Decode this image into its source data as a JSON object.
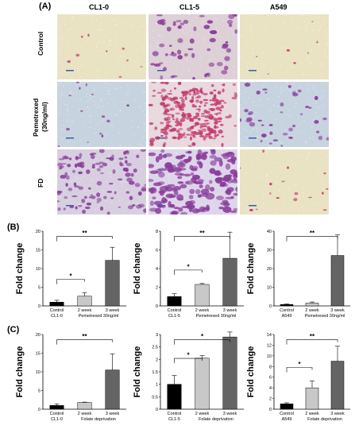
{
  "panel_A": {
    "label": "(A)",
    "columns": [
      "CL1-0",
      "CL1-5",
      "A549"
    ],
    "rows": [
      "Control",
      "Pemetrexed (30ng/ml)",
      "FD"
    ],
    "row_lines": [
      [
        "Control"
      ],
      [
        "Pemetrexed",
        "(30ng/ml)"
      ],
      [
        "FD"
      ]
    ],
    "colors": {
      "yellow_bg": "#e9e3c4",
      "blue_bg": "#c7d4e0",
      "stain": "#8a3c9a",
      "stain_red": "#c43a6e"
    }
  },
  "panel_B": {
    "label": "(B)"
  },
  "panel_C": {
    "label": "(C)"
  },
  "chart_data": [
    {
      "type": "bar",
      "panel": "B",
      "ylabel": "Fold change",
      "categories": [
        "Control",
        "2 week",
        "3 week"
      ],
      "values": [
        1.0,
        2.6,
        12.2
      ],
      "errors": [
        0.5,
        0.9,
        3.5
      ],
      "ylim": [
        0,
        20
      ],
      "yticks": [
        0,
        5,
        10,
        15,
        20
      ],
      "cell_line": "CL1-0",
      "treatment": "Pemetrexed 30ng/ml",
      "significance": [
        {
          "from": 0,
          "to": 1,
          "label": "*"
        },
        {
          "from": 0,
          "to": 2,
          "label": "**"
        }
      ],
      "colors": [
        "#000000",
        "#c8c8c8",
        "#646464"
      ]
    },
    {
      "type": "bar",
      "panel": "B",
      "ylabel": "Fold change",
      "categories": [
        "Control",
        "2 week",
        "3 week"
      ],
      "values": [
        1.0,
        2.3,
        5.1
      ],
      "errors": [
        0.3,
        0.1,
        2.8
      ],
      "ylim": [
        0,
        8
      ],
      "yticks": [
        0,
        2,
        4,
        6,
        8
      ],
      "cell_line": "CL1-5",
      "treatment": "Pemetrexed 30ng/ml",
      "significance": [
        {
          "from": 0,
          "to": 1,
          "label": "*"
        },
        {
          "from": 0,
          "to": 2,
          "label": "**"
        }
      ],
      "colors": [
        "#000000",
        "#c8c8c8",
        "#646464"
      ]
    },
    {
      "type": "bar",
      "panel": "B",
      "ylabel": "Fold change",
      "categories": [
        "Control",
        "2 week",
        "3 week"
      ],
      "values": [
        0.8,
        1.5,
        27.0
      ],
      "errors": [
        0.2,
        0.6,
        11.0
      ],
      "ylim": [
        0,
        40
      ],
      "yticks": [
        0,
        10,
        20,
        30,
        40
      ],
      "cell_line": "A549",
      "treatment": "Pemetrexed 30ng/ml",
      "significance": [
        {
          "from": 0,
          "to": 2,
          "label": "**"
        }
      ],
      "colors": [
        "#000000",
        "#c8c8c8",
        "#646464"
      ]
    },
    {
      "type": "bar",
      "panel": "C",
      "ylabel": "Fold change",
      "categories": [
        "Control",
        "2 week",
        "3 week"
      ],
      "values": [
        1.0,
        1.8,
        10.5
      ],
      "errors": [
        0.4,
        0.1,
        4.3
      ],
      "ylim": [
        0,
        20
      ],
      "yticks": [
        0,
        5,
        10,
        15,
        20
      ],
      "cell_line": "CL1-0",
      "treatment": "Folate deprivation",
      "significance": [
        {
          "from": 0,
          "to": 2,
          "label": "**"
        }
      ],
      "colors": [
        "#000000",
        "#c8c8c8",
        "#646464"
      ]
    },
    {
      "type": "bar",
      "panel": "C",
      "ylabel": "Fold change",
      "categories": [
        "Control",
        "2 week",
        "3 week"
      ],
      "values": [
        1.0,
        2.05,
        2.9
      ],
      "errors": [
        0.35,
        0.1,
        0.2
      ],
      "ylim": [
        0,
        3
      ],
      "yticks": [
        0,
        0.5,
        1,
        1.5,
        2,
        2.5,
        3
      ],
      "ytick_labels": [
        "0",
        "0.5",
        "1",
        "1.5",
        "2",
        "2.5",
        "3"
      ],
      "cell_line": "CL1-5",
      "treatment": "Folate deprivation",
      "significance": [
        {
          "from": 0,
          "to": 1,
          "label": "*"
        },
        {
          "from": 0,
          "to": 2,
          "label": "*"
        }
      ],
      "colors": [
        "#000000",
        "#c8c8c8",
        "#646464"
      ]
    },
    {
      "type": "bar",
      "panel": "C",
      "ylabel": "Fold change",
      "categories": [
        "Control",
        "2 week",
        "3 week"
      ],
      "values": [
        1.0,
        4.0,
        9.0
      ],
      "errors": [
        0.2,
        1.3,
        2.8
      ],
      "ylim": [
        0,
        14
      ],
      "yticks": [
        0,
        2,
        4,
        6,
        8,
        10,
        12,
        14
      ],
      "cell_line": "A549",
      "treatment": "Folate deprivation",
      "significance": [
        {
          "from": 0,
          "to": 1,
          "label": "*"
        },
        {
          "from": 0,
          "to": 2,
          "label": "**"
        }
      ],
      "colors": [
        "#000000",
        "#c8c8c8",
        "#646464"
      ]
    }
  ]
}
